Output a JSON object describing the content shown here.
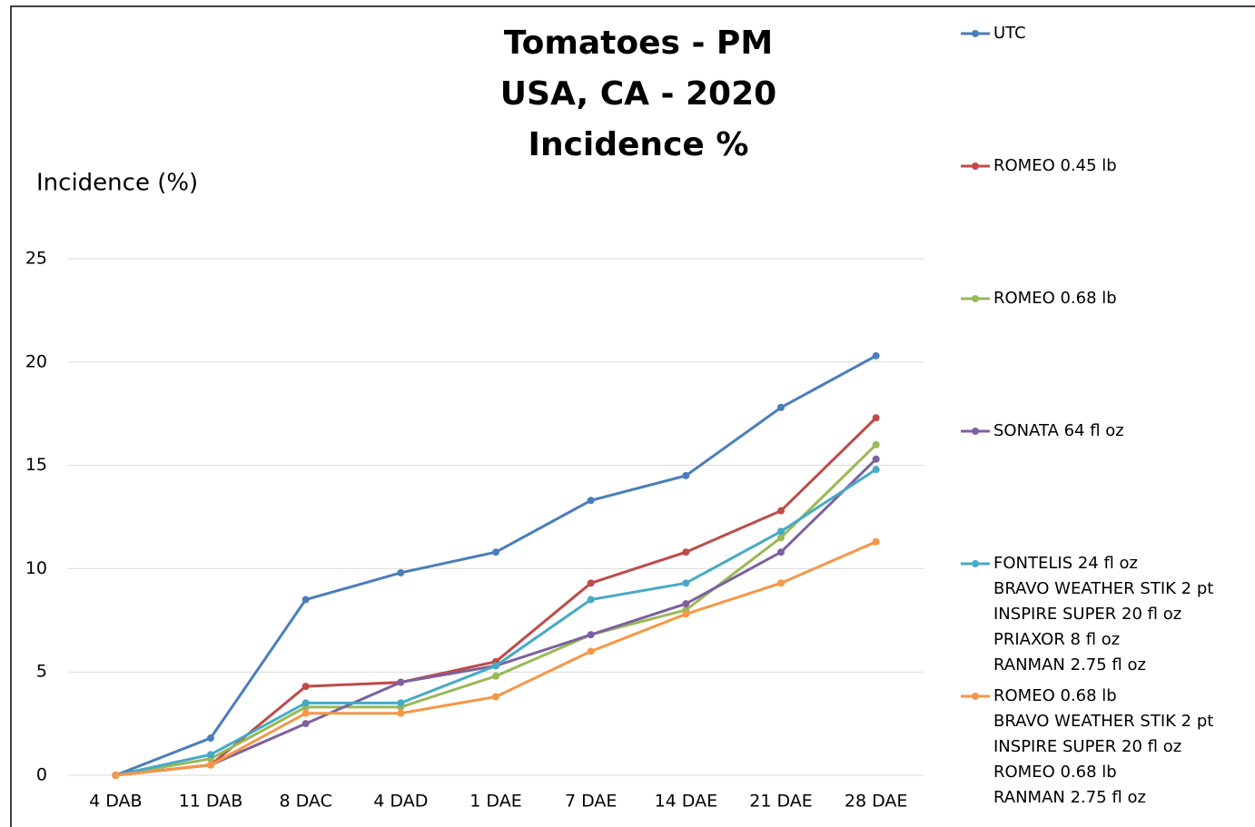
{
  "chart_data": {
    "type": "line",
    "title": [
      "Tomatoes - PM",
      "USA, CA - 2020",
      "Incidence %"
    ],
    "y_label": "Incidence (%)",
    "categories": [
      "4 DAB",
      "11 DAB",
      "8 DAC",
      "4 DAD",
      "1 DAE",
      "7 DAE",
      "14 DAE",
      "21 DAE",
      "28 DAE"
    ],
    "ylim": [
      0,
      25
    ],
    "yticks": [
      0,
      5,
      10,
      15,
      20,
      25
    ],
    "grid": true,
    "legend": "right",
    "series": [
      {
        "name": "UTC",
        "color": "#4a7ebb",
        "values": [
          0,
          1.8,
          8.5,
          9.8,
          10.8,
          13.3,
          14.5,
          17.8,
          20.3
        ]
      },
      {
        "name": "ROMEO 0.45 lb",
        "color": "#be4b48",
        "values": [
          0,
          0.5,
          4.3,
          4.5,
          5.5,
          9.3,
          10.8,
          12.8,
          17.3
        ]
      },
      {
        "name": "ROMEO 0.68 lb",
        "color": "#98b954",
        "values": [
          0,
          0.8,
          3.3,
          3.3,
          4.8,
          6.8,
          8.0,
          11.5,
          16.0
        ]
      },
      {
        "name": "SONATA 64 fl oz",
        "color": "#7d60a0",
        "values": [
          0,
          0.5,
          2.5,
          4.5,
          5.3,
          6.8,
          8.3,
          10.8,
          15.3
        ]
      },
      {
        "name": "FONTELIS 24 fl oz\nBRAVO WEATHER STIK 2 pt\nINSPIRE SUPER 20 fl oz\nPRIAXOR 8 fl oz\nRANMAN 2.75 fl oz",
        "color": "#46aac5",
        "values": [
          0,
          1.0,
          3.5,
          3.5,
          5.3,
          8.5,
          9.3,
          11.8,
          14.8
        ]
      },
      {
        "name": "ROMEO 0.68 lb\nBRAVO WEATHER STIK 2 pt\nINSPIRE SUPER 20 fl oz\nROMEO 0.68 lb\nRANMAN 2.75 fl oz",
        "color": "#f79646",
        "values": [
          0,
          0.5,
          3.0,
          3.0,
          3.8,
          6.0,
          7.8,
          9.3,
          11.3
        ]
      }
    ]
  }
}
